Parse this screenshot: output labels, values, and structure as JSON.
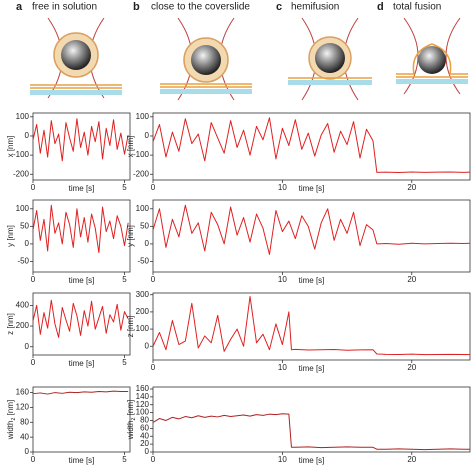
{
  "panels": [
    {
      "letter": "a",
      "title": "free in solution"
    },
    {
      "letter": "b",
      "title": "close to the coverslide"
    },
    {
      "letter": "c",
      "title": "hemifusion"
    },
    {
      "letter": "d",
      "title": "total fusion"
    }
  ],
  "chart_data": [
    {
      "type": "line",
      "ylabel": "x [nm]",
      "xlabel": "time [s]",
      "color": "#e02020",
      "xlim": [
        0,
        5.3
      ],
      "xticks": [
        0,
        5
      ],
      "ylim": [
        -230,
        120
      ],
      "yticks": [
        100,
        0,
        -100,
        -200
      ],
      "x": [
        0,
        0.2,
        0.4,
        0.6,
        0.8,
        1,
        1.2,
        1.4,
        1.6,
        1.8,
        2,
        2.2,
        2.4,
        2.6,
        2.8,
        3,
        3.2,
        3.4,
        3.6,
        3.8,
        4,
        4.2,
        4.4,
        4.6,
        4.8,
        5,
        5.2
      ],
      "values": [
        -20,
        60,
        -90,
        30,
        -110,
        80,
        -40,
        10,
        -130,
        70,
        -10,
        -80,
        90,
        -60,
        20,
        -100,
        50,
        -30,
        75,
        -120,
        40,
        -50,
        85,
        -70,
        15,
        -95,
        5
      ]
    },
    {
      "type": "line",
      "ylabel": "y [nm]",
      "xlabel": "time [s]",
      "color": "#e02020",
      "xlim": [
        0,
        5.3
      ],
      "xticks": [
        0,
        5
      ],
      "ylim": [
        -80,
        125
      ],
      "yticks": [
        100,
        50,
        0,
        -50
      ],
      "x": [
        0,
        0.2,
        0.4,
        0.6,
        0.8,
        1,
        1.2,
        1.4,
        1.6,
        1.8,
        2,
        2.2,
        2.4,
        2.6,
        2.8,
        3,
        3.2,
        3.4,
        3.6,
        3.8,
        4,
        4.2,
        4.4,
        4.6,
        4.8,
        5,
        5.2
      ],
      "values": [
        40,
        95,
        10,
        70,
        -20,
        110,
        30,
        60,
        0,
        90,
        55,
        -10,
        100,
        20,
        75,
        5,
        85,
        45,
        -25,
        105,
        35,
        65,
        15,
        80,
        50,
        -5,
        60
      ]
    },
    {
      "type": "line",
      "ylabel": "z [nm]",
      "xlabel": "time [s]",
      "color": "#e02020",
      "xlim": [
        0,
        5.3
      ],
      "xticks": [
        0,
        5
      ],
      "ylim": [
        -80,
        520
      ],
      "yticks": [
        400,
        200,
        0
      ],
      "x": [
        0,
        0.2,
        0.4,
        0.6,
        0.8,
        1,
        1.2,
        1.4,
        1.6,
        1.8,
        2,
        2.2,
        2.4,
        2.6,
        2.8,
        3,
        3.2,
        3.4,
        3.6,
        3.8,
        4,
        4.2,
        4.4,
        4.6,
        4.8,
        5,
        5.2
      ],
      "values": [
        250,
        400,
        120,
        330,
        180,
        450,
        220,
        90,
        380,
        260,
        150,
        420,
        300,
        110,
        350,
        200,
        440,
        170,
        280,
        390,
        130,
        310,
        240,
        410,
        160,
        340,
        270
      ]
    },
    {
      "type": "line",
      "ylabel": [
        "width",
        "z",
        " [nm]"
      ],
      "xlabel": "time [s]",
      "color": "#b02020",
      "xlim": [
        0,
        5.3
      ],
      "xticks": [
        0,
        5
      ],
      "ylim": [
        0,
        175
      ],
      "yticks": [
        160,
        120,
        80,
        40,
        0
      ],
      "x": [
        0,
        0.4,
        0.8,
        1.2,
        1.6,
        2,
        2.4,
        2.8,
        3.2,
        3.6,
        4,
        4.4,
        4.8,
        5.2
      ],
      "values": [
        157,
        159,
        156,
        160,
        158,
        161,
        160,
        162,
        161,
        163,
        162,
        164,
        163,
        163
      ]
    },
    {
      "type": "line",
      "ylabel": "x [nm]",
      "xlabel": "time [s]",
      "color": "#e02020",
      "xlim": [
        0,
        24.5
      ],
      "xticks": [
        0,
        10,
        20
      ],
      "ylim": [
        -230,
        120
      ],
      "yticks": [
        100,
        0,
        -100,
        -200
      ],
      "x": [
        0,
        0.5,
        1,
        1.5,
        2,
        2.5,
        3,
        3.5,
        4,
        4.5,
        5,
        5.5,
        6,
        6.5,
        7,
        7.5,
        8,
        8.5,
        9,
        9.5,
        10,
        10.5,
        11,
        11.5,
        12,
        12.5,
        13,
        13.5,
        14,
        14.5,
        15,
        15.5,
        16,
        16.5,
        17,
        17.3,
        18,
        19,
        20,
        21,
        22,
        23,
        24,
        24.5
      ],
      "values": [
        -30,
        60,
        -110,
        20,
        -80,
        90,
        -40,
        10,
        -130,
        70,
        -10,
        -90,
        80,
        -60,
        30,
        -100,
        50,
        -20,
        95,
        -120,
        40,
        -50,
        85,
        -70,
        15,
        -105,
        5,
        65,
        -85,
        25,
        -45,
        75,
        -115,
        35,
        -25,
        -190,
        -189,
        -191,
        -188,
        -190,
        -189,
        -188,
        -190,
        -189
      ]
    },
    {
      "type": "line",
      "ylabel": "y [nm]",
      "xlabel": "time [s]",
      "color": "#e02020",
      "xlim": [
        0,
        24.5
      ],
      "xticks": [
        0,
        10,
        20
      ],
      "ylim": [
        -80,
        125
      ],
      "yticks": [
        100,
        50,
        0,
        -50
      ],
      "x": [
        0,
        0.5,
        1,
        1.5,
        2,
        2.5,
        3,
        3.5,
        4,
        4.5,
        5,
        5.5,
        6,
        6.5,
        7,
        7.5,
        8,
        8.5,
        9,
        9.5,
        10,
        10.5,
        11,
        11.5,
        12,
        12.5,
        13,
        13.5,
        14,
        14.5,
        15,
        15.5,
        16,
        16.5,
        17,
        17.3,
        18,
        19,
        20,
        21,
        22,
        23,
        24,
        24.5
      ],
      "values": [
        40,
        100,
        -10,
        70,
        20,
        110,
        30,
        60,
        -20,
        90,
        55,
        0,
        105,
        25,
        75,
        5,
        85,
        45,
        -30,
        95,
        35,
        65,
        15,
        80,
        50,
        -15,
        60,
        100,
        10,
        70,
        30,
        90,
        -5,
        55,
        40,
        0,
        1,
        -1,
        2,
        0,
        1,
        2,
        1,
        2
      ]
    },
    {
      "type": "line",
      "ylabel": "z [nm]",
      "xlabel": "time [s]",
      "color": "#e02020",
      "xlim": [
        0,
        24.5
      ],
      "xticks": [
        0,
        10,
        20
      ],
      "ylim": [
        -80,
        310
      ],
      "yticks": [
        300,
        200,
        100,
        0
      ],
      "x": [
        0,
        0.5,
        1,
        1.5,
        2,
        2.5,
        3,
        3.5,
        4,
        4.5,
        5,
        5.5,
        6,
        6.5,
        7,
        7.5,
        8,
        8.5,
        9,
        9.5,
        10,
        10.5,
        10.7,
        11,
        12,
        13,
        14,
        15,
        16,
        17,
        17.3,
        18,
        19,
        20,
        21,
        22,
        23,
        24,
        24.5
      ],
      "values": [
        0,
        80,
        -20,
        150,
        10,
        30,
        250,
        -10,
        60,
        20,
        180,
        -30,
        40,
        100,
        0,
        290,
        20,
        70,
        -20,
        130,
        10,
        200,
        -20,
        -18,
        -22,
        -20,
        -19,
        -23,
        -21,
        -20,
        -45,
        -47,
        -48,
        -46,
        -49,
        -48,
        -47,
        -48,
        -49
      ]
    },
    {
      "type": "line",
      "ylabel": [
        "width",
        "z",
        " [nm]"
      ],
      "xlabel": "time [s]",
      "color": "#b02020",
      "xlim": [
        0,
        24.5
      ],
      "xticks": [
        0,
        10,
        20
      ],
      "ylim": [
        0,
        165
      ],
      "yticks": [
        160,
        140,
        120,
        100,
        80,
        60,
        40,
        20,
        0
      ],
      "x": [
        0,
        0.5,
        1,
        1.5,
        2,
        2.5,
        3,
        3.5,
        4,
        4.5,
        5,
        5.5,
        6,
        6.5,
        7,
        7.5,
        8,
        8.5,
        9,
        9.5,
        10,
        10.5,
        10.7,
        11,
        12,
        13,
        14,
        15,
        16,
        17,
        17.3,
        18,
        19,
        20,
        21,
        22,
        23,
        24,
        24.5
      ],
      "values": [
        75,
        85,
        80,
        88,
        84,
        90,
        87,
        92,
        88,
        91,
        89,
        93,
        90,
        92,
        94,
        91,
        95,
        93,
        96,
        95,
        97,
        96,
        12,
        12,
        13,
        11,
        12,
        13,
        12,
        12,
        7,
        7,
        8,
        7,
        6,
        7,
        8,
        7,
        7
      ]
    }
  ]
}
